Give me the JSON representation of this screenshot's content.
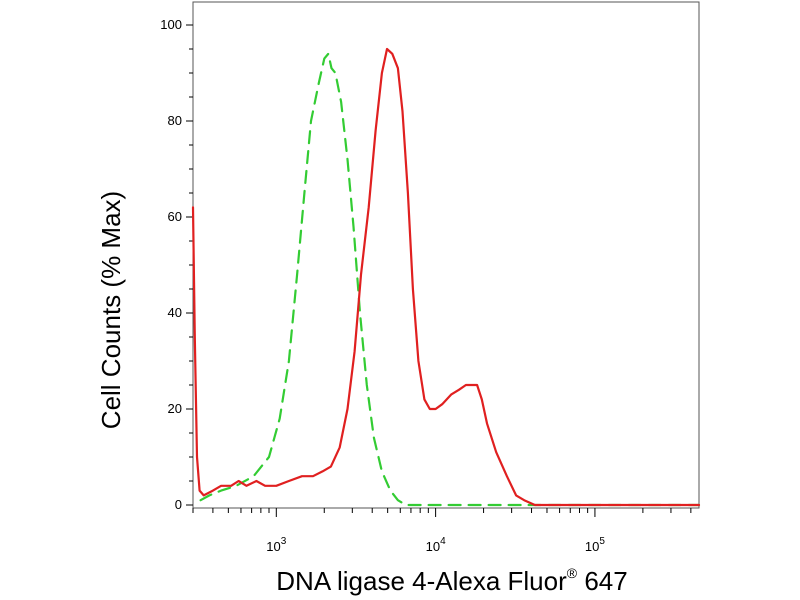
{
  "chart_data": {
    "type": "line",
    "xlabel": "DNA ligase 4-Alexa Fluor",
    "xlabel_superscript": "®",
    "xlabel_suffix": "647",
    "ylabel": "Cell Counts (% Max)",
    "x_scale": "log",
    "xlim": [
      300,
      450000
    ],
    "ylim": [
      0,
      100
    ],
    "y_ticks": [
      0,
      20,
      40,
      60,
      80,
      100
    ],
    "y_tick_labels": [
      "0",
      "20",
      "40",
      "60",
      "80",
      "100"
    ],
    "x_major_ticks": [
      1000,
      10000,
      100000
    ],
    "x_tick_labels": [
      {
        "base": "10",
        "exp": "3"
      },
      {
        "base": "10",
        "exp": "4"
      },
      {
        "base": "10",
        "exp": "5"
      }
    ],
    "grid": false,
    "legend": "none",
    "series": [
      {
        "color": "#33cc33",
        "style": "dashed",
        "points": [
          [
            335,
            1
          ],
          [
            380,
            2
          ],
          [
            450,
            3
          ],
          [
            560,
            4
          ],
          [
            720,
            6
          ],
          [
            900,
            10
          ],
          [
            1050,
            18
          ],
          [
            1200,
            30
          ],
          [
            1350,
            48
          ],
          [
            1500,
            65
          ],
          [
            1650,
            80
          ],
          [
            1850,
            88
          ],
          [
            2000,
            93
          ],
          [
            2120,
            94
          ],
          [
            2220,
            91
          ],
          [
            2350,
            90
          ],
          [
            2550,
            84
          ],
          [
            2800,
            72
          ],
          [
            3050,
            58
          ],
          [
            3350,
            40
          ],
          [
            3700,
            25
          ],
          [
            4100,
            14
          ],
          [
            4600,
            7
          ],
          [
            5200,
            3
          ],
          [
            5800,
            1
          ],
          [
            6500,
            0
          ],
          [
            10000,
            0
          ],
          [
            100000,
            0
          ],
          [
            450000,
            0
          ]
        ]
      },
      {
        "color": "#e02020",
        "style": "solid",
        "points": [
          [
            300,
            62
          ],
          [
            308,
            35
          ],
          [
            318,
            10
          ],
          [
            330,
            3
          ],
          [
            350,
            2
          ],
          [
            400,
            3
          ],
          [
            450,
            4
          ],
          [
            520,
            4
          ],
          [
            580,
            5
          ],
          [
            650,
            4
          ],
          [
            750,
            5
          ],
          [
            850,
            4
          ],
          [
            1000,
            4
          ],
          [
            1200,
            5
          ],
          [
            1450,
            6
          ],
          [
            1700,
            6
          ],
          [
            1950,
            7
          ],
          [
            2200,
            8
          ],
          [
            2500,
            12
          ],
          [
            2800,
            20
          ],
          [
            3100,
            32
          ],
          [
            3400,
            48
          ],
          [
            3800,
            62
          ],
          [
            4200,
            78
          ],
          [
            4600,
            90
          ],
          [
            4950,
            95
          ],
          [
            5350,
            94
          ],
          [
            5800,
            91
          ],
          [
            6200,
            82
          ],
          [
            6700,
            65
          ],
          [
            7200,
            45
          ],
          [
            7800,
            30
          ],
          [
            8500,
            22
          ],
          [
            9200,
            20
          ],
          [
            10000,
            20
          ],
          [
            11000,
            21
          ],
          [
            12500,
            23
          ],
          [
            14000,
            24
          ],
          [
            15500,
            25
          ],
          [
            17000,
            25
          ],
          [
            18200,
            25
          ],
          [
            19500,
            22
          ],
          [
            21000,
            17
          ],
          [
            24000,
            11
          ],
          [
            28000,
            6
          ],
          [
            32000,
            2
          ],
          [
            36000,
            1
          ],
          [
            42000,
            0
          ],
          [
            60000,
            0
          ],
          [
            100000,
            0
          ],
          [
            450000,
            0
          ]
        ]
      }
    ]
  }
}
